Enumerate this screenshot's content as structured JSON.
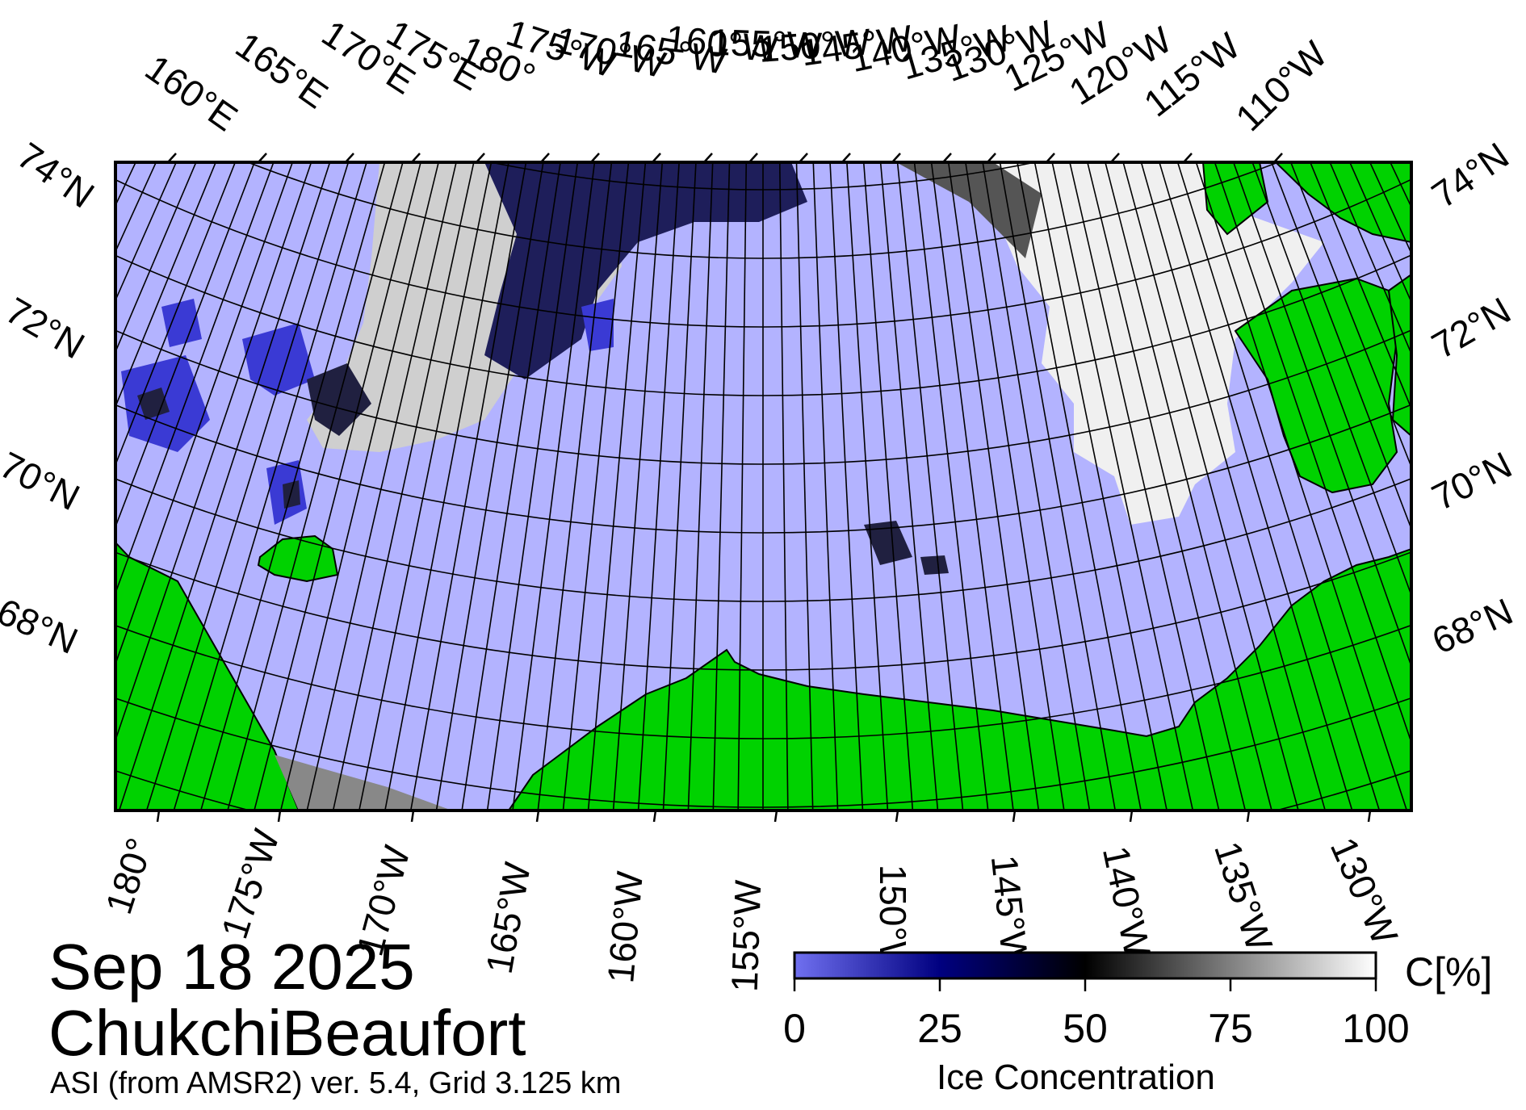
{
  "map": {
    "date": "Sep 18 2025",
    "region": "ChukchiBeaufort",
    "source": "ASI (from AMSR2) ver. 5.4,  Grid 3.125 km",
    "colors": {
      "ocean": "#b3b3ff",
      "land": "#00d200",
      "no_data": "#888888",
      "low_ice": "#3a3ad4",
      "dark_ice": "#0a0a3a",
      "grid": "#000000"
    },
    "top_lon_labels": [
      "160°E",
      "165°E",
      "170°E",
      "175°E",
      "180°",
      "175°W",
      "170°W",
      "165°W",
      "160°W",
      "155°W",
      "150°W",
      "145°W",
      "140°W",
      "135°W",
      "130°W",
      "125°W",
      "120°W",
      "115°W",
      "110°W"
    ],
    "bottom_lon_labels": [
      "180°",
      "175°W",
      "170°W",
      "165°W",
      "160°W",
      "155°W",
      "150°W",
      "145°W",
      "140°W",
      "135°W",
      "130°W"
    ],
    "left_lat_labels": [
      "74°N",
      "72°N",
      "70°N",
      "68°N"
    ],
    "right_lat_labels": [
      "74°N",
      "72°N",
      "70°N",
      "68°N"
    ]
  },
  "colorbar": {
    "title": "Ice Concentration",
    "unit": "C[%]",
    "ticks": [
      "0",
      "25",
      "50",
      "75",
      "100"
    ],
    "range": [
      0,
      100
    ]
  }
}
